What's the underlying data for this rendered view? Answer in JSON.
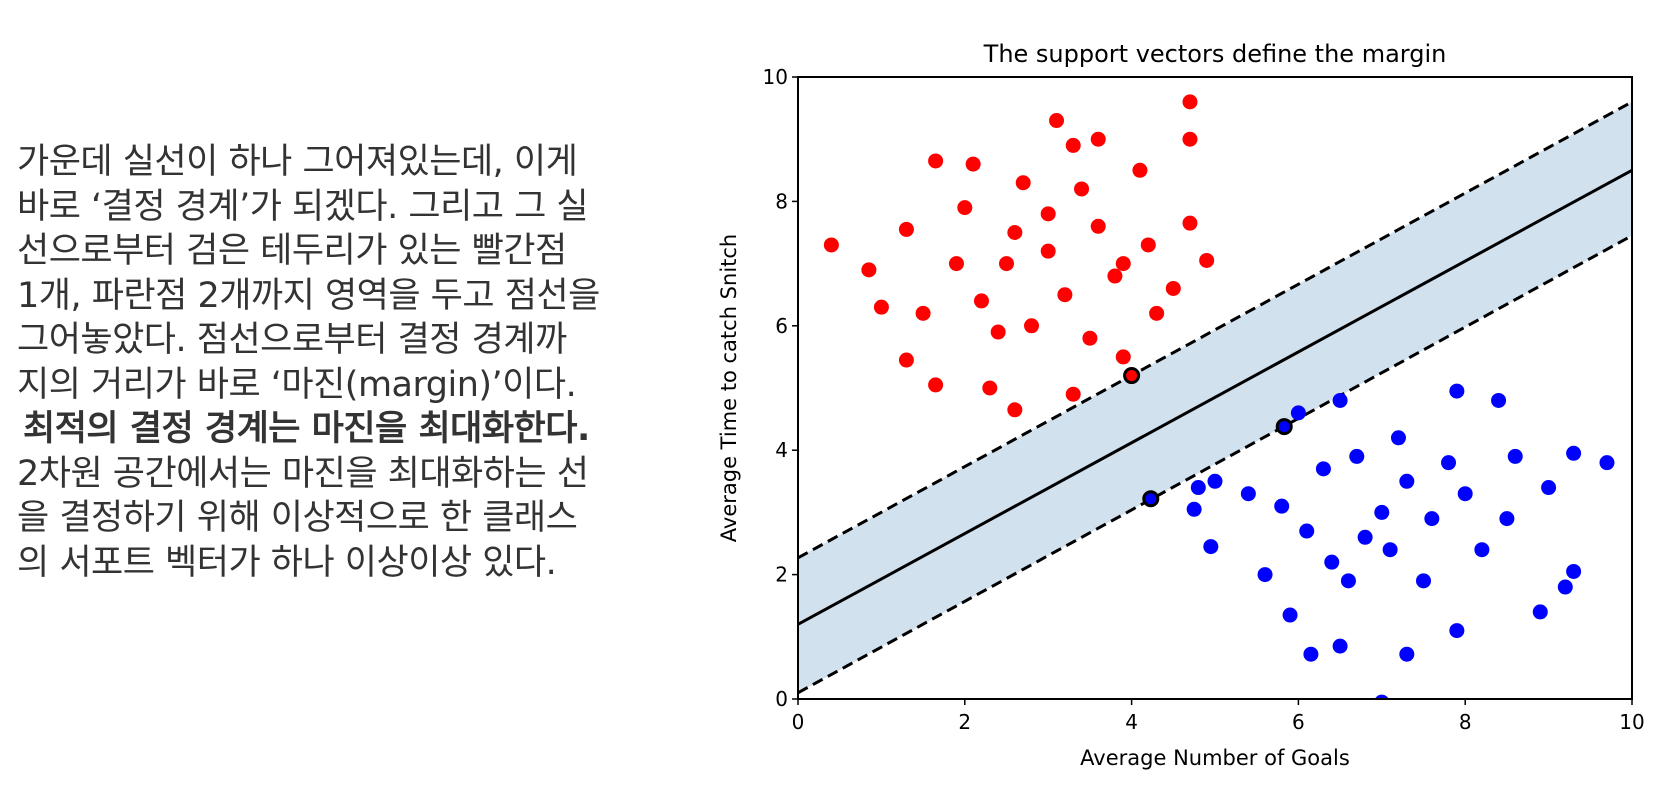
{
  "paragraph": {
    "lines": [
      "가운데 실선이 하나 그어져있는데, 이게",
      "바로 ‘결정 경계’가 되겠다. 그리고 그 실",
      "선으로부터 검은 테두리가 있는 빨간점",
      "1개, 파란점 2개까지 영역을 두고 점선을",
      "그어놓았다. 점선으로부터 결정 경계까",
      "지의 거리가 바로 ‘마진(margin)’이다.",
      "최적의 결정 경계는 마진을 최대화한다.",
      "2차원 공간에서는 마진을 최대화하는 선",
      "을 결정하기 위해 이상적으로 한 클래스",
      "의 서포트 벡터가 하나 이상이상 있다."
    ],
    "bold_line": 6
  },
  "chart_data": {
    "type": "scatter",
    "title": "The support vectors define the margin",
    "xlabel": "Average Number of Goals",
    "ylabel": "Average Time to catch Snitch",
    "xlim": [
      0,
      10
    ],
    "ylim": [
      0,
      10
    ],
    "xticks": [
      0,
      2,
      4,
      6,
      8,
      10
    ],
    "yticks": [
      0,
      2,
      4,
      6,
      8,
      10
    ],
    "grid": false,
    "series": [
      {
        "color": "red",
        "x": [
          0.4,
          0.85,
          1.0,
          1.3,
          1.3,
          1.65,
          1.65,
          2.3,
          2.6,
          3.1,
          3.3,
          3.6,
          4.7,
          4.7,
          3.3,
          3.9,
          4.9,
          4.7,
          2.0,
          2.5,
          3.0,
          3.2,
          2.8,
          3.6,
          3.8,
          4.2,
          2.2,
          1.9,
          2.7,
          3.4,
          4.3,
          4.1,
          2.4,
          3.5,
          1.5,
          4.5,
          3.0,
          2.6,
          3.9,
          2.1
        ],
        "y": [
          7.3,
          6.9,
          6.3,
          5.45,
          7.55,
          5.05,
          8.65,
          5.0,
          4.65,
          9.3,
          8.9,
          9.0,
          9.6,
          9.0,
          4.9,
          5.5,
          7.05,
          7.65,
          7.9,
          7.0,
          7.2,
          6.5,
          6.0,
          7.6,
          6.8,
          7.3,
          6.4,
          7.0,
          8.3,
          8.2,
          6.2,
          8.5,
          5.9,
          5.8,
          6.2,
          6.6,
          7.8,
          7.5,
          7.0,
          8.6
        ],
        "support_x": [
          4.0
        ],
        "support_y": [
          5.2
        ]
      },
      {
        "color": "blue",
        "x": [
          7.0,
          6.15,
          6.5,
          7.3,
          7.9,
          8.9,
          9.2,
          9.3,
          9.7,
          9.3,
          9.0,
          8.6,
          8.4,
          7.9,
          6.5,
          6.0,
          4.75,
          4.95,
          4.8,
          5.0,
          5.4,
          5.6,
          5.9,
          6.6,
          7.0,
          7.3,
          6.8,
          7.6,
          6.3,
          7.2,
          8.0,
          8.2,
          6.1,
          7.5,
          5.8,
          6.7,
          8.5,
          7.8,
          6.4,
          7.1
        ],
        "y": [
          -0.05,
          0.72,
          0.85,
          0.72,
          1.1,
          1.4,
          1.8,
          2.05,
          3.8,
          3.95,
          3.4,
          3.9,
          4.8,
          4.95,
          4.8,
          4.6,
          3.05,
          2.45,
          3.4,
          3.5,
          3.3,
          2.0,
          1.35,
          1.9,
          3.0,
          3.5,
          2.6,
          2.9,
          3.7,
          4.2,
          3.3,
          2.4,
          2.7,
          1.9,
          3.1,
          3.9,
          2.9,
          3.8,
          2.2,
          2.4
        ],
        "support_x": [
          5.83,
          4.23
        ],
        "support_y": [
          4.38,
          3.22
        ]
      }
    ],
    "support_edgecolor": "black",
    "boundary": {
      "x": [
        0,
        10
      ],
      "y": [
        1.2,
        8.5
      ],
      "color": "black"
    },
    "margin_lines": [
      {
        "x": [
          0,
          10
        ],
        "y": [
          2.27,
          9.6
        ]
      },
      {
        "x": [
          0,
          10
        ],
        "y": [
          0.1,
          7.45
        ]
      }
    ],
    "margin_fill": "#d2e1ee"
  }
}
